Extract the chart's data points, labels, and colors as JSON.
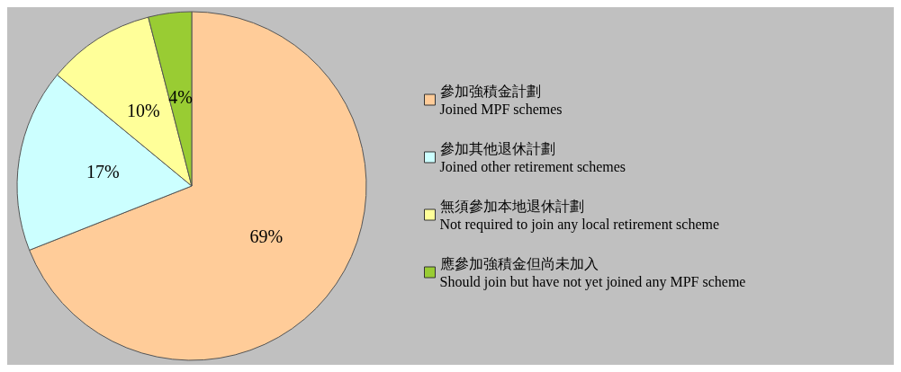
{
  "chart_data": {
    "type": "pie",
    "categories": [
      "參加強積金計劃\nJoined MPF schemes",
      "參加其他退休計劃\nJoined other retirement schemes",
      "無須參加本地退休計劃\nNot required to join any local retirement scheme",
      "應參加強積金但尚未加入\nShould join but have not yet joined any MPF scheme"
    ],
    "values": [
      69,
      17,
      10,
      4
    ],
    "colors": [
      "#ffcc99",
      "#ccffff",
      "#ffff99",
      "#99cc33"
    ],
    "value_labels": [
      "69%",
      "17%",
      "10%",
      "4%"
    ],
    "legend": "right"
  }
}
